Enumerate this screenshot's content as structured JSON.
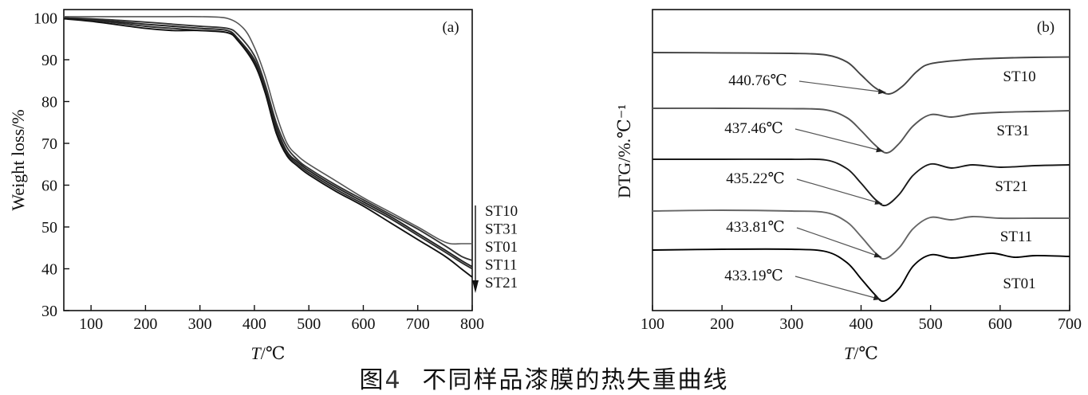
{
  "caption": {
    "prefix": "图",
    "number": "4",
    "text": "不同样品漆膜的热失重曲线"
  },
  "chart_data": [
    {
      "type": "line",
      "panel": "(a)",
      "xlabel_italic": "T",
      "xlabel_unit": "/℃",
      "ylabel": "Weight loss/%",
      "xlim": [
        50,
        800
      ],
      "ylim": [
        30,
        102
      ],
      "xticks": [
        100,
        200,
        300,
        400,
        500,
        600,
        700,
        800
      ],
      "yticks": [
        30,
        40,
        50,
        60,
        70,
        80,
        90,
        100
      ],
      "legend_order": [
        "ST10",
        "ST31",
        "ST01",
        "ST11",
        "ST21"
      ],
      "series": [
        {
          "name": "ST10",
          "color": "#555555",
          "x": [
            50,
            150,
            250,
            300,
            350,
            380,
            400,
            420,
            440,
            460,
            480,
            500,
            550,
            600,
            650,
            700,
            740,
            760,
            780,
            800
          ],
          "y": [
            100.3,
            100.3,
            100.3,
            100.3,
            99.9,
            97.5,
            93,
            86,
            77,
            70,
            67,
            65,
            61,
            57,
            53.5,
            50,
            47,
            46,
            46,
            46
          ]
        },
        {
          "name": "ST31",
          "color": "#333333",
          "x": [
            50,
            100,
            200,
            250,
            300,
            350,
            370,
            400,
            420,
            440,
            460,
            480,
            500,
            550,
            600,
            650,
            700,
            750,
            780,
            800
          ],
          "y": [
            100,
            99.8,
            99,
            98.5,
            98,
            97.5,
            96,
            91,
            84,
            75,
            69,
            66,
            64,
            60,
            56.5,
            53,
            49.5,
            45.5,
            43,
            42
          ]
        },
        {
          "name": "ST01",
          "color": "#222222",
          "x": [
            50,
            100,
            200,
            250,
            300,
            350,
            370,
            400,
            420,
            440,
            460,
            480,
            500,
            550,
            600,
            650,
            700,
            750,
            780,
            800
          ],
          "y": [
            100,
            99.6,
            98.5,
            98,
            97.5,
            97,
            95,
            90,
            83,
            74,
            68,
            65.5,
            63.5,
            59.5,
            56,
            52.5,
            48.5,
            44.5,
            42,
            40.5
          ]
        },
        {
          "name": "ST11",
          "color": "#2a2a2a",
          "x": [
            50,
            100,
            200,
            250,
            300,
            350,
            370,
            400,
            420,
            440,
            460,
            480,
            500,
            550,
            600,
            650,
            700,
            750,
            780,
            800
          ],
          "y": [
            100,
            99.5,
            98,
            97.5,
            97,
            96.5,
            95,
            89.5,
            82.5,
            73,
            67.5,
            65,
            63,
            59,
            55.5,
            52,
            48,
            44,
            41.5,
            40
          ]
        },
        {
          "name": "ST21",
          "color": "#111111",
          "x": [
            50,
            100,
            200,
            250,
            300,
            350,
            370,
            400,
            420,
            440,
            460,
            480,
            500,
            550,
            600,
            650,
            700,
            750,
            780,
            800
          ],
          "y": [
            99.8,
            99.2,
            97.5,
            97,
            97,
            96.5,
            94.5,
            89,
            82,
            72.5,
            67,
            64.5,
            62.5,
            58.5,
            55,
            51,
            47,
            43,
            40,
            38
          ]
        }
      ]
    },
    {
      "type": "line",
      "panel": "(b)",
      "xlabel_italic": "T",
      "xlabel_unit": "/℃",
      "ylabel": "DTG/%.℃⁻¹",
      "xlim": [
        100,
        700
      ],
      "xticks": [
        100,
        200,
        300,
        400,
        500,
        600,
        700
      ],
      "series": [
        {
          "name": "ST10",
          "peak": "440.76℃",
          "peak_x": 440.76,
          "color": "#444444",
          "x": [
            100,
            200,
            300,
            350,
            380,
            400,
            420,
            440,
            460,
            480,
            500,
            550,
            600,
            650,
            700
          ],
          "y": [
            0,
            -0.02,
            -0.05,
            -0.15,
            -0.6,
            -1.4,
            -2.2,
            -2.6,
            -2.1,
            -1.2,
            -0.7,
            -0.45,
            -0.35,
            -0.3,
            -0.28
          ]
        },
        {
          "name": "ST31",
          "peak": "437.46℃",
          "peak_x": 437.46,
          "color": "#555555",
          "x": [
            100,
            200,
            300,
            350,
            380,
            400,
            420,
            437,
            455,
            475,
            500,
            530,
            560,
            600,
            650,
            700
          ],
          "y": [
            0,
            0,
            -0.02,
            -0.1,
            -0.6,
            -1.4,
            -2.3,
            -2.8,
            -2.2,
            -1.1,
            -0.4,
            -0.55,
            -0.35,
            -0.25,
            -0.2,
            -0.15
          ]
        },
        {
          "name": "ST21",
          "peak": "435.22℃",
          "peak_x": 435.22,
          "color": "#1a1a1a",
          "x": [
            100,
            200,
            300,
            350,
            380,
            400,
            420,
            435,
            455,
            475,
            500,
            530,
            560,
            600,
            650,
            700
          ],
          "y": [
            0,
            0,
            0,
            -0.05,
            -0.6,
            -1.5,
            -2.5,
            -2.9,
            -2.2,
            -1.0,
            -0.3,
            -0.55,
            -0.35,
            -0.5,
            -0.4,
            -0.35
          ]
        },
        {
          "name": "ST11",
          "peak": "433.81℃",
          "peak_x": 433.81,
          "color": "#666666",
          "x": [
            100,
            200,
            300,
            350,
            380,
            400,
            420,
            434,
            455,
            475,
            500,
            530,
            560,
            600,
            650,
            700
          ],
          "y": [
            0,
            0.05,
            0,
            -0.1,
            -0.7,
            -1.6,
            -2.6,
            -3.0,
            -2.3,
            -1.1,
            -0.4,
            -0.55,
            -0.35,
            -0.45,
            -0.45,
            -0.45
          ]
        },
        {
          "name": "ST01",
          "peak": "433.19℃",
          "peak_x": 433.19,
          "color": "#000000",
          "x": [
            100,
            200,
            300,
            350,
            380,
            400,
            420,
            433,
            455,
            475,
            500,
            530,
            560,
            590,
            620,
            650,
            700
          ],
          "y": [
            0,
            0.05,
            0.05,
            -0.1,
            -0.8,
            -1.8,
            -2.8,
            -3.2,
            -2.4,
            -1.0,
            -0.3,
            -0.5,
            -0.35,
            -0.2,
            -0.45,
            -0.35,
            -0.4
          ]
        }
      ]
    }
  ]
}
